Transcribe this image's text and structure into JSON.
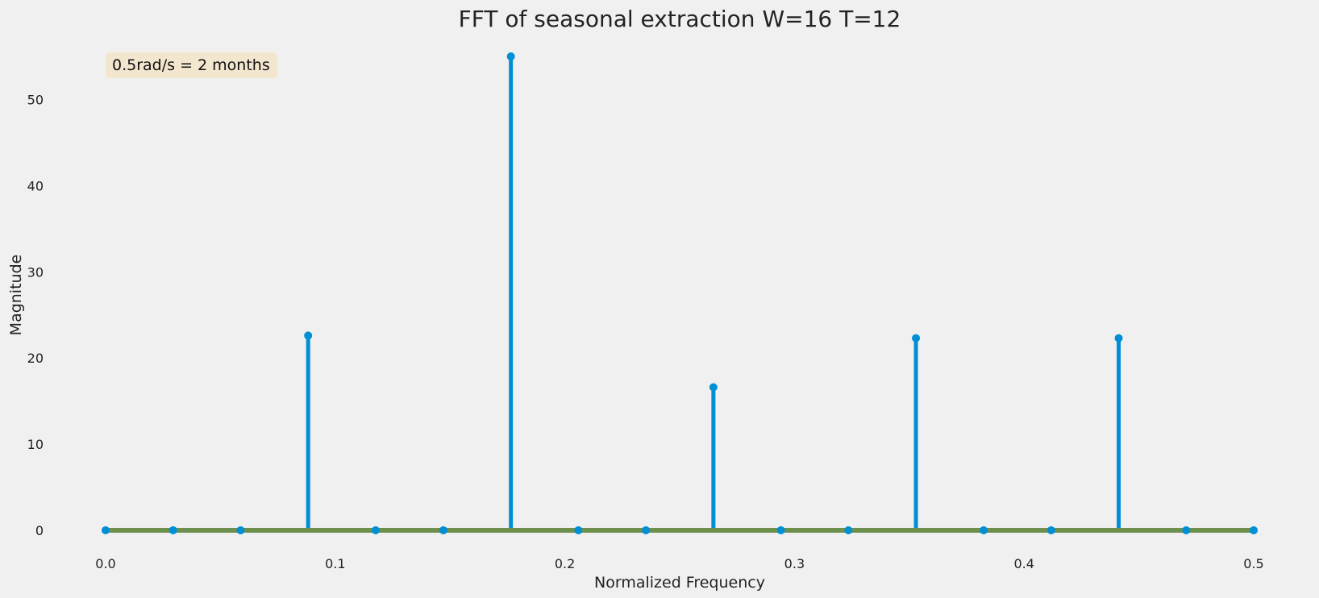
{
  "chart_data": {
    "type": "stem",
    "title": "FFT of seasonal extraction W=16 T=12",
    "xlabel": "Normalized Frequency",
    "ylabel": "Magnitude",
    "xlim": [
      0.0,
      0.5
    ],
    "ylim": [
      -1.5,
      56.5
    ],
    "xticks": [
      0.0,
      0.1,
      0.2,
      0.3,
      0.4,
      0.5
    ],
    "xtick_labels": [
      "0.0",
      "0.1",
      "0.2",
      "0.3",
      "0.4",
      "0.5"
    ],
    "yticks": [
      0,
      10,
      20,
      30,
      40,
      50
    ],
    "ytick_labels": [
      "0",
      "10",
      "20",
      "30",
      "40",
      "50"
    ],
    "grid": false,
    "annotation": "0.5rad/s = 2 months",
    "x": [
      0.0,
      0.0294,
      0.0588,
      0.0882,
      0.1176,
      0.1471,
      0.1765,
      0.2059,
      0.2353,
      0.2647,
      0.2941,
      0.3235,
      0.3529,
      0.3824,
      0.4118,
      0.4412,
      0.4706,
      0.5
    ],
    "values": [
      0,
      0,
      0,
      22.6,
      0,
      0,
      55.0,
      0,
      0,
      16.6,
      0,
      0,
      22.3,
      0,
      0,
      22.3,
      0,
      0
    ],
    "colors": {
      "stem": "#008fd5",
      "baseline": "#6d904f",
      "background": "#f0f0f0",
      "annotation_box": "#f5deb3"
    }
  }
}
